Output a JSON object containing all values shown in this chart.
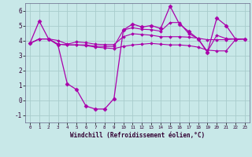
{
  "xlabel": "Windchill (Refroidissement éolien,°C)",
  "xlim": [
    -0.5,
    23.5
  ],
  "ylim": [
    -1.5,
    6.5
  ],
  "yticks": [
    -1,
    0,
    1,
    2,
    3,
    4,
    5,
    6
  ],
  "xticks": [
    0,
    1,
    2,
    3,
    4,
    5,
    6,
    7,
    8,
    9,
    10,
    11,
    12,
    13,
    14,
    15,
    16,
    17,
    18,
    19,
    20,
    21,
    22,
    23
  ],
  "background_color": "#c8e8e8",
  "grid_color": "#a8cccc",
  "line_color": "#aa00aa",
  "lines": [
    {
      "x": [
        0,
        1,
        2,
        3,
        4,
        5,
        6,
        7,
        8,
        9,
        10,
        11,
        12,
        13,
        14,
        15,
        16,
        17,
        18,
        19,
        20,
        21,
        22,
        23
      ],
      "y": [
        3.8,
        5.3,
        4.1,
        3.7,
        1.1,
        0.7,
        -0.4,
        -0.6,
        -0.6,
        0.1,
        4.7,
        5.1,
        4.9,
        5.0,
        4.8,
        6.3,
        5.1,
        4.6,
        4.1,
        3.2,
        5.5,
        5.0,
        4.1,
        4.1
      ],
      "marker": "D",
      "markersize": 2.5,
      "linewidth": 0.9
    },
    {
      "x": [
        0,
        1,
        2,
        3,
        4,
        5,
        6,
        7,
        8,
        9,
        10,
        11,
        12,
        13,
        14,
        15,
        16,
        17,
        18,
        19,
        20,
        21,
        22,
        23
      ],
      "y": [
        3.8,
        4.1,
        4.1,
        3.75,
        3.7,
        3.7,
        3.65,
        3.55,
        3.5,
        3.45,
        3.6,
        3.7,
        3.75,
        3.8,
        3.75,
        3.7,
        3.7,
        3.65,
        3.55,
        3.35,
        3.3,
        3.3,
        4.05,
        4.1
      ],
      "marker": "D",
      "markersize": 1.8,
      "linewidth": 0.8
    },
    {
      "x": [
        0,
        1,
        2,
        3,
        4,
        5,
        6,
        7,
        8,
        9,
        10,
        11,
        12,
        13,
        14,
        15,
        16,
        17,
        18,
        19,
        20,
        21,
        22,
        23
      ],
      "y": [
        3.8,
        4.1,
        4.1,
        4.0,
        3.75,
        3.9,
        3.85,
        3.75,
        3.72,
        3.72,
        4.25,
        4.45,
        4.4,
        4.35,
        4.25,
        4.25,
        4.25,
        4.22,
        4.15,
        4.05,
        4.05,
        4.05,
        4.1,
        4.1
      ],
      "marker": "D",
      "markersize": 1.8,
      "linewidth": 0.8
    },
    {
      "x": [
        0,
        1,
        2,
        3,
        4,
        5,
        6,
        7,
        8,
        9,
        10,
        11,
        12,
        13,
        14,
        15,
        16,
        17,
        18,
        19,
        20,
        21,
        22,
        23
      ],
      "y": [
        3.8,
        4.1,
        4.1,
        3.75,
        3.7,
        3.7,
        3.7,
        3.62,
        3.6,
        3.6,
        4.7,
        4.85,
        4.75,
        4.72,
        4.62,
        5.2,
        5.2,
        4.45,
        4.12,
        3.25,
        4.35,
        4.12,
        4.1,
        4.1
      ],
      "marker": "D",
      "markersize": 1.8,
      "linewidth": 0.8
    }
  ]
}
